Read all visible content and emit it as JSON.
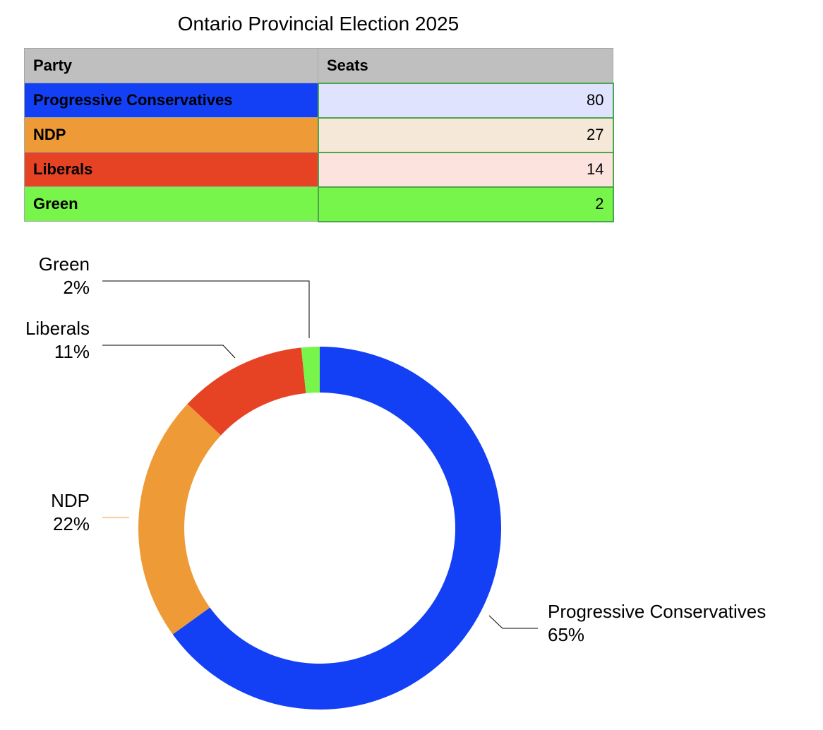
{
  "title": "Ontario Provincial Election 2025",
  "table": {
    "headers": [
      "Party",
      "Seats"
    ],
    "rows": [
      {
        "party": "Progressive Conservatives",
        "seats": "80",
        "party_color": "#1440f5",
        "seat_color": "#dfe3fd"
      },
      {
        "party": "NDP",
        "seats": "27",
        "party_color": "#ee9b37",
        "seat_color": "#f5e8d9"
      },
      {
        "party": "Liberals",
        "seats": "14",
        "party_color": "#e64325",
        "seat_color": "#fde3de"
      },
      {
        "party": "Green",
        "seats": "2",
        "party_color": "#78f54a",
        "seat_color": "#78f54a"
      }
    ]
  },
  "chart_data": {
    "type": "pie",
    "style": "donut",
    "title": "",
    "slices": [
      {
        "name": "Progressive Conservatives",
        "value": 80,
        "label": "65%",
        "color": "#1440f5"
      },
      {
        "name": "NDP",
        "value": 27,
        "label": "22%",
        "color": "#ee9b37"
      },
      {
        "name": "Liberals",
        "value": 14,
        "label": "11%",
        "color": "#e64325"
      },
      {
        "name": "Green",
        "value": 2,
        "label": "2%",
        "color": "#78f54a"
      }
    ],
    "start_angle_deg": 0,
    "direction": "clockwise",
    "legend": "none",
    "labels": "outside-with-leader-lines"
  }
}
